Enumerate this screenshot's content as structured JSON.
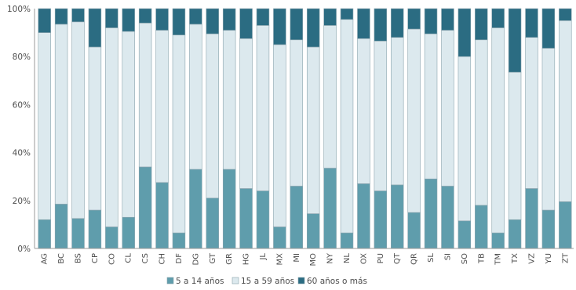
{
  "chart_data": {
    "type": "bar",
    "stacked": "percent",
    "categories": [
      "AG",
      "BC",
      "BS",
      "CP",
      "CO",
      "CL",
      "CS",
      "CH",
      "DF",
      "DG",
      "GT",
      "GR",
      "HG",
      "JL",
      "MX",
      "MI",
      "MO",
      "NY",
      "NL",
      "OX",
      "PU",
      "QT",
      "QR",
      "SL",
      "SI",
      "SO",
      "TB",
      "TM",
      "TX",
      "VZ",
      "YU",
      "ZT"
    ],
    "series": [
      {
        "name": "5 a 14 años",
        "color": "#5f9dac",
        "values": [
          12,
          18.5,
          12.5,
          16,
          9,
          13,
          34,
          27.5,
          6.5,
          33,
          21,
          33,
          25,
          24,
          9,
          26,
          14.5,
          33.5,
          6.5,
          27,
          24,
          26.5,
          15,
          29,
          26,
          11.5,
          18,
          6.5,
          12,
          25,
          16,
          19.5
        ]
      },
      {
        "name": "15 a 59 años",
        "color": "#dce9ee",
        "values": [
          78,
          75,
          82,
          68,
          83,
          77.5,
          60,
          63.5,
          82.5,
          60.5,
          68.5,
          58,
          62.5,
          69,
          76,
          61,
          69.5,
          59.5,
          89,
          60.5,
          62.5,
          61.5,
          76.5,
          60.5,
          65,
          68.5,
          69,
          85.5,
          61.5,
          63,
          67.5,
          75.5
        ]
      },
      {
        "name": "60 años o más",
        "color": "#2b6c82",
        "values": [
          10,
          6.5,
          5.5,
          16,
          8,
          9.5,
          6,
          9,
          11,
          6.5,
          10.5,
          9,
          12.5,
          7,
          15,
          13,
          16,
          7,
          4.5,
          12.5,
          13.5,
          12,
          8.5,
          10.5,
          9,
          20,
          13,
          8,
          26.5,
          12,
          16.5,
          5
        ]
      }
    ],
    "ylim": [
      0,
      100
    ],
    "yticks": [
      "0%",
      "20%",
      "40%",
      "60%",
      "80%",
      "100%"
    ],
    "grid": false,
    "legend_position": "bottom"
  }
}
